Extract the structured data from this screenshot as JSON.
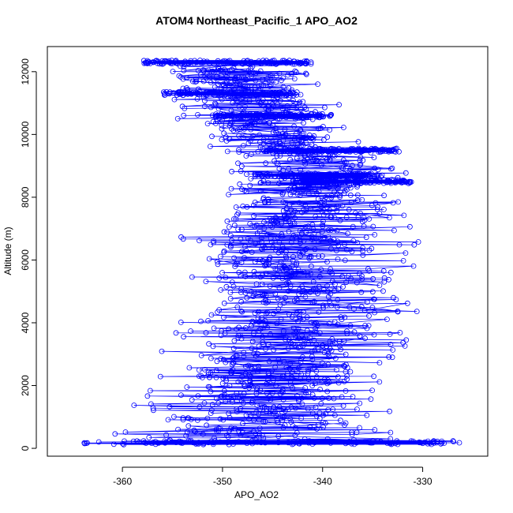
{
  "chart_data": {
    "type": "scatter",
    "title": "ATOM4 Northeast_Pacific_1 APO_AO2",
    "xlabel": "APO_AO2",
    "ylabel": "Altitude (m)",
    "xlim": [
      -367.5,
      -323.5
    ],
    "ylim": [
      -250,
      12800
    ],
    "x_ticks": [
      -360,
      -350,
      -340,
      -330
    ],
    "x_tick_labels": [
      "-360",
      "-350",
      "-340",
      "-330"
    ],
    "y_ticks": [
      0,
      2000,
      4000,
      6000,
      8000,
      10000,
      12000
    ],
    "y_tick_labels": [
      "0",
      "2000",
      "4000",
      "6000",
      "8000",
      "10000",
      "12000"
    ],
    "marker": "open-circle",
    "connected_by_line": true,
    "color": "#0000ff",
    "grid": false,
    "profile_envelope": [
      {
        "altitude": 200,
        "min": -366,
        "max": -325
      },
      {
        "altitude": 1000,
        "min": -362,
        "max": -331
      },
      {
        "altitude": 2000,
        "min": -359,
        "max": -332
      },
      {
        "altitude": 3000,
        "min": -357,
        "max": -331
      },
      {
        "altitude": 4000,
        "min": -358,
        "max": -328
      },
      {
        "altitude": 5000,
        "min": -355,
        "max": -330
      },
      {
        "altitude": 6000,
        "min": -355,
        "max": -331
      },
      {
        "altitude": 7000,
        "min": -354,
        "max": -330
      },
      {
        "altitude": 8000,
        "min": -352,
        "max": -331
      },
      {
        "altitude": 9000,
        "min": -350,
        "max": -330
      },
      {
        "altitude": 10000,
        "min": -353,
        "max": -337
      },
      {
        "altitude": 11000,
        "min": -356,
        "max": -337
      },
      {
        "altitude": 12000,
        "min": -360,
        "max": -339
      },
      {
        "altitude": 12300,
        "min": -362,
        "max": -340
      }
    ],
    "dense_levels": [
      {
        "altitude": 180,
        "min": -364,
        "max": -326
      },
      {
        "altitude": 12300,
        "min": -358,
        "max": -341
      },
      {
        "altitude": 11300,
        "min": -356,
        "max": -342
      },
      {
        "altitude": 10600,
        "min": -351,
        "max": -339
      },
      {
        "altitude": 9500,
        "min": -346,
        "max": -332
      },
      {
        "altitude": 8700,
        "min": -347,
        "max": -334
      },
      {
        "altitude": 8500,
        "min": -343,
        "max": -331
      }
    ]
  }
}
